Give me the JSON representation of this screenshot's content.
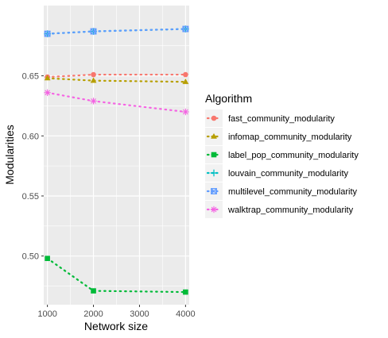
{
  "chart_data": {
    "type": "line",
    "xlabel": "Network size",
    "ylabel": "Modularities",
    "x": [
      1000,
      2000,
      4000
    ],
    "xticks": [
      "1000",
      "2000",
      "3000",
      "4000"
    ],
    "yticks": [
      "0.50",
      "0.55",
      "0.60",
      "0.65"
    ],
    "xlim": [
      920,
      4080
    ],
    "ylim": [
      0.4595,
      0.7085
    ],
    "legend_title": "Algorithm",
    "legend_position": "right",
    "series": [
      {
        "name": "fast_community_modularity",
        "values": [
          0.649,
          0.651,
          0.651
        ],
        "color": "#F8766D",
        "marker": "circle"
      },
      {
        "name": "infomap_community_modularity",
        "values": [
          0.648,
          0.646,
          0.645
        ],
        "color": "#B79F00",
        "marker": "triangle"
      },
      {
        "name": "label_pop_community_modularity",
        "values": [
          0.498,
          0.471,
          0.47
        ],
        "color": "#00BA38",
        "marker": "square"
      },
      {
        "name": "louvain_community_modularity",
        "values": [
          0.685,
          0.687,
          0.689
        ],
        "color": "#00BFC4",
        "marker": "plus"
      },
      {
        "name": "multilevel_community_modularity",
        "values": [
          0.685,
          0.687,
          0.689
        ],
        "color": "#619CFF",
        "marker": "boxcross"
      },
      {
        "name": "walktrap_community_modularity",
        "values": [
          0.636,
          0.629,
          0.62
        ],
        "color": "#F564E3",
        "marker": "asterisk"
      }
    ],
    "grid": true,
    "panel_background": "#EBEBEB"
  }
}
